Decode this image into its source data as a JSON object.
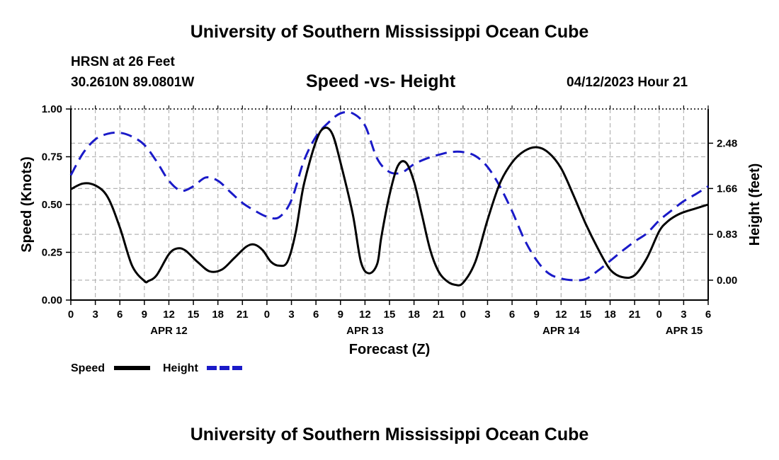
{
  "header": {
    "title": "University of Southern Mississippi Ocean Cube",
    "station": "HRSN at 26 Feet",
    "coords": "30.2610N  89.0801W",
    "chart_title": "Speed -vs- Height",
    "datetime": "04/12/2023 Hour 21"
  },
  "footer": {
    "title": "University of Southern Mississippi Ocean Cube"
  },
  "colors": {
    "speed": "#000000",
    "height": "#1a1ac8",
    "grid": "#b4b4b4"
  },
  "legend": {
    "speed_label": "Speed",
    "height_label": "Height"
  },
  "chart_data": {
    "type": "line",
    "title": "Speed -vs- Height",
    "xlabel": "Forecast (Z)",
    "ylabel_left": "Speed (Knots)",
    "ylabel_right": "Height (feet)",
    "x_unit": "hours since 2023-04-12 00Z",
    "xlim": [
      0,
      78
    ],
    "ylim_left": [
      0,
      1.0
    ],
    "ylim_right": [
      -0.36,
      3.1
    ],
    "x_ticks": [
      0,
      3,
      6,
      9,
      12,
      15,
      18,
      21,
      24,
      27,
      30,
      33,
      36,
      39,
      42,
      45,
      48,
      51,
      54,
      57,
      60,
      63,
      66,
      69,
      72,
      75,
      78
    ],
    "x_tick_labels": [
      "0",
      "3",
      "6",
      "9",
      "12",
      "15",
      "18",
      "21",
      "0",
      "3",
      "6",
      "9",
      "12",
      "15",
      "18",
      "21",
      "0",
      "3",
      "6",
      "9",
      "12",
      "15",
      "18",
      "21",
      "0",
      "3",
      "6"
    ],
    "date_labels": [
      {
        "x": 12,
        "label": "APR 12"
      },
      {
        "x": 36,
        "label": "APR 13"
      },
      {
        "x": 60,
        "label": "APR 14"
      },
      {
        "x": 78,
        "label": "APR 15"
      }
    ],
    "y_left_ticks": [
      0.0,
      0.25,
      0.5,
      0.75,
      1.0
    ],
    "y_left_tick_labels": [
      "0.00",
      "0.25",
      "0.50",
      "0.75",
      "1.00"
    ],
    "y_right_ticks": [
      0.0,
      0.83,
      1.66,
      2.48
    ],
    "y_right_tick_labels": [
      "0.00",
      "0.83",
      "1.66",
      "2.48"
    ],
    "grid": true,
    "series": [
      {
        "name": "Speed",
        "axis": "left",
        "style": "solid",
        "x": [
          0,
          1.5,
          3,
          4.5,
          6,
          7.5,
          9,
          9.5,
          10.5,
          12,
          13,
          14,
          15.5,
          17,
          18.5,
          20,
          21.5,
          22.5,
          23.5,
          24.5,
          25.5,
          26.5,
          27.5,
          28.5,
          30,
          31,
          32,
          33,
          34.5,
          35.5,
          36.5,
          37.5,
          38,
          39,
          40,
          41,
          42,
          43,
          44,
          45,
          46,
          47,
          48,
          49.5,
          51,
          52.5,
          54,
          55.5,
          57,
          58.5,
          60,
          61.5,
          63,
          64.5,
          66,
          67.5,
          69,
          70.5,
          72,
          73,
          74,
          75,
          76.5,
          78
        ],
        "values": [
          0.58,
          0.61,
          0.6,
          0.54,
          0.38,
          0.18,
          0.1,
          0.1,
          0.13,
          0.24,
          0.27,
          0.26,
          0.2,
          0.15,
          0.16,
          0.22,
          0.28,
          0.29,
          0.26,
          0.2,
          0.18,
          0.2,
          0.35,
          0.6,
          0.83,
          0.9,
          0.87,
          0.72,
          0.45,
          0.2,
          0.14,
          0.19,
          0.33,
          0.55,
          0.7,
          0.72,
          0.62,
          0.44,
          0.26,
          0.15,
          0.1,
          0.08,
          0.09,
          0.2,
          0.42,
          0.61,
          0.72,
          0.78,
          0.8,
          0.77,
          0.69,
          0.55,
          0.4,
          0.27,
          0.16,
          0.12,
          0.13,
          0.22,
          0.36,
          0.41,
          0.44,
          0.46,
          0.48,
          0.5
        ]
      },
      {
        "name": "Height",
        "axis": "right",
        "style": "dashed",
        "x": [
          0,
          1.5,
          3,
          4.5,
          6,
          7.5,
          9,
          10.5,
          12,
          13.5,
          15,
          16.5,
          18,
          19.5,
          21,
          22.5,
          24,
          25.5,
          27,
          28.5,
          30,
          31.5,
          33,
          34.5,
          36,
          37.5,
          39,
          40.5,
          42,
          43.5,
          45,
          46.5,
          48,
          49.5,
          51,
          52.5,
          54,
          55.5,
          57,
          58.5,
          60,
          61.5,
          63,
          64.5,
          66,
          67.5,
          69,
          70.5,
          72,
          73.5,
          75,
          76.5,
          78
        ],
        "values": [
          1.9,
          2.3,
          2.55,
          2.65,
          2.67,
          2.6,
          2.45,
          2.15,
          1.8,
          1.62,
          1.7,
          1.86,
          1.8,
          1.6,
          1.4,
          1.26,
          1.15,
          1.14,
          1.45,
          2.15,
          2.6,
          2.85,
          3.02,
          3.02,
          2.8,
          2.2,
          1.96,
          1.95,
          2.1,
          2.2,
          2.27,
          2.32,
          2.32,
          2.25,
          2.05,
          1.7,
          1.25,
          0.74,
          0.36,
          0.12,
          0.03,
          0.0,
          0.02,
          0.17,
          0.35,
          0.53,
          0.7,
          0.85,
          1.08,
          1.26,
          1.43,
          1.56,
          1.7
        ]
      }
    ]
  }
}
